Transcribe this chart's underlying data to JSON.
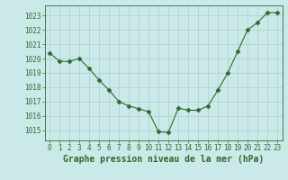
{
  "x": [
    0,
    1,
    2,
    3,
    4,
    5,
    6,
    7,
    8,
    9,
    10,
    11,
    12,
    13,
    14,
    15,
    16,
    17,
    18,
    19,
    20,
    21,
    22,
    23
  ],
  "y": [
    1020.4,
    1019.8,
    1019.8,
    1020.0,
    1019.3,
    1018.5,
    1017.8,
    1017.0,
    1016.7,
    1016.5,
    1016.3,
    1014.9,
    1014.85,
    1016.55,
    1016.4,
    1016.4,
    1016.7,
    1017.8,
    1019.0,
    1020.5,
    1022.0,
    1022.5,
    1023.2,
    1023.2
  ],
  "line_color": "#2d6a2d",
  "marker": "D",
  "marker_size": 2.5,
  "bg_color": "#cce9e9",
  "grid_color": "#aacece",
  "yticks": [
    1015,
    1016,
    1017,
    1018,
    1019,
    1020,
    1021,
    1022,
    1023
  ],
  "ylim": [
    1014.3,
    1023.7
  ],
  "xlim": [
    -0.5,
    23.5
  ],
  "xlabel_label": "Graphe pression niveau de la mer (hPa)",
  "tick_fontsize": 5.5,
  "label_fontsize": 7.0
}
